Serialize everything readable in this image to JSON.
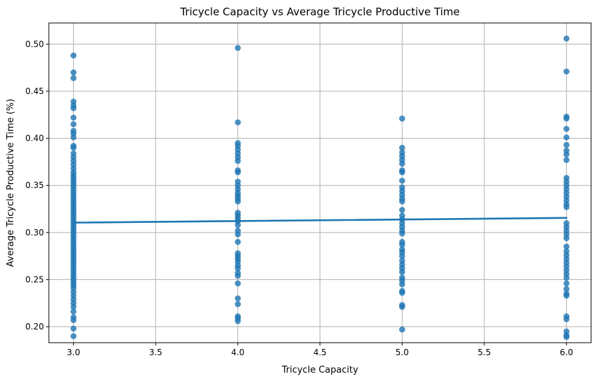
{
  "chart_data": {
    "type": "scatter",
    "title": "Tricycle Capacity vs Average Tricycle Productive Time",
    "xlabel": "Tricycle Capacity",
    "ylabel": "Average Tricycle Productive Time (%)",
    "xlim": [
      2.85,
      6.15
    ],
    "ylim": [
      0.183,
      0.5225
    ],
    "x_ticks": [
      "3.0",
      "3.5",
      "4.0",
      "4.5",
      "5.0",
      "5.5",
      "6.0"
    ],
    "y_ticks": [
      "0.20",
      "0.25",
      "0.30",
      "0.35",
      "0.40",
      "0.45",
      "0.50"
    ],
    "grid": true,
    "point_color": "#1f77b4",
    "series": [
      {
        "x": 3,
        "y": [
          0.488,
          0.47,
          0.464,
          0.439,
          0.435,
          0.432,
          0.422,
          0.415,
          0.408,
          0.405,
          0.401,
          0.392,
          0.39,
          0.384,
          0.38,
          0.376,
          0.372,
          0.368,
          0.364,
          0.361,
          0.358,
          0.355,
          0.352,
          0.349,
          0.346,
          0.343,
          0.34,
          0.337,
          0.334,
          0.331,
          0.328,
          0.325,
          0.322,
          0.319,
          0.316,
          0.313,
          0.31,
          0.307,
          0.304,
          0.301,
          0.298,
          0.295,
          0.292,
          0.289,
          0.286,
          0.283,
          0.28,
          0.277,
          0.274,
          0.271,
          0.268,
          0.265,
          0.262,
          0.259,
          0.256,
          0.253,
          0.25,
          0.247,
          0.244,
          0.241,
          0.237,
          0.233,
          0.229,
          0.225,
          0.221,
          0.216,
          0.21,
          0.207,
          0.198,
          0.19
        ]
      },
      {
        "x": 4,
        "y": [
          0.496,
          0.417,
          0.395,
          0.392,
          0.388,
          0.384,
          0.38,
          0.376,
          0.366,
          0.364,
          0.354,
          0.35,
          0.346,
          0.342,
          0.339,
          0.336,
          0.333,
          0.321,
          0.318,
          0.315,
          0.312,
          0.308,
          0.302,
          0.298,
          0.29,
          0.278,
          0.275,
          0.272,
          0.269,
          0.265,
          0.262,
          0.257,
          0.254,
          0.246,
          0.23,
          0.224,
          0.211,
          0.209,
          0.206
        ]
      },
      {
        "x": 5,
        "y": [
          0.421,
          0.39,
          0.385,
          0.381,
          0.377,
          0.373,
          0.366,
          0.364,
          0.355,
          0.348,
          0.344,
          0.34,
          0.336,
          0.333,
          0.324,
          0.318,
          0.314,
          0.31,
          0.306,
          0.302,
          0.299,
          0.29,
          0.287,
          0.282,
          0.279,
          0.275,
          0.27,
          0.266,
          0.262,
          0.258,
          0.252,
          0.249,
          0.245,
          0.238,
          0.236,
          0.223,
          0.221,
          0.197
        ]
      },
      {
        "x": 6,
        "y": [
          0.506,
          0.471,
          0.423,
          0.421,
          0.41,
          0.401,
          0.393,
          0.387,
          0.383,
          0.377,
          0.358,
          0.354,
          0.35,
          0.346,
          0.342,
          0.338,
          0.334,
          0.33,
          0.327,
          0.31,
          0.306,
          0.302,
          0.298,
          0.294,
          0.285,
          0.28,
          0.276,
          0.272,
          0.268,
          0.264,
          0.26,
          0.256,
          0.252,
          0.246,
          0.24,
          0.235,
          0.233,
          0.211,
          0.208,
          0.195,
          0.191,
          0.189
        ]
      }
    ],
    "regression_line": {
      "color": "#1f77b4",
      "x": [
        3,
        6
      ],
      "y": [
        0.3105,
        0.3155
      ]
    }
  }
}
